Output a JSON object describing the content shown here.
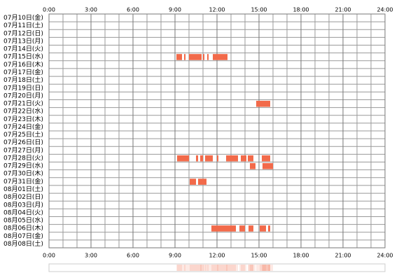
{
  "chart_data": {
    "type": "timeline",
    "xlim": [
      0,
      24
    ],
    "xticks": [
      {
        "value": 0,
        "label": "0:00"
      },
      {
        "value": 3,
        "label": "3:00"
      },
      {
        "value": 6,
        "label": "6:00"
      },
      {
        "value": 9,
        "label": "9:00"
      },
      {
        "value": 12,
        "label": "12:00"
      },
      {
        "value": 15,
        "label": "15:00"
      },
      {
        "value": 18,
        "label": "18:00"
      },
      {
        "value": 21,
        "label": "21:00"
      },
      {
        "value": 24,
        "label": "24:00"
      }
    ],
    "minor_xticks": [
      1,
      2,
      4,
      5,
      7,
      8,
      10,
      11,
      13,
      14,
      16,
      17,
      19,
      20,
      22,
      23
    ],
    "grid": true,
    "color": "#f26a4a",
    "rows": [
      {
        "label": "07月10日(金)",
        "intervals": []
      },
      {
        "label": "07月11日(土)",
        "intervals": []
      },
      {
        "label": "07月12日(日)",
        "intervals": []
      },
      {
        "label": "07月13日(月)",
        "intervals": []
      },
      {
        "label": "07月14日(火)",
        "intervals": []
      },
      {
        "label": "07月15日(水)",
        "intervals": [
          [
            9.1,
            9.5
          ],
          [
            9.65,
            9.75
          ],
          [
            10.0,
            10.9
          ],
          [
            11.0,
            11.1
          ],
          [
            11.3,
            11.4
          ],
          [
            11.7,
            12.75
          ]
        ]
      },
      {
        "label": "07月16日(木)",
        "intervals": []
      },
      {
        "label": "07月17日(金)",
        "intervals": []
      },
      {
        "label": "07月18日(土)",
        "intervals": []
      },
      {
        "label": "07月19日(日)",
        "intervals": []
      },
      {
        "label": "07月20日(月)",
        "intervals": []
      },
      {
        "label": "07月21日(火)",
        "intervals": [
          [
            14.8,
            15.8
          ]
        ]
      },
      {
        "label": "07月22日(水)",
        "intervals": []
      },
      {
        "label": "07月23日(木)",
        "intervals": []
      },
      {
        "label": "07月24日(金)",
        "intervals": []
      },
      {
        "label": "07月25日(土)",
        "intervals": []
      },
      {
        "label": "07月26日(日)",
        "intervals": []
      },
      {
        "label": "07月27日(月)",
        "intervals": []
      },
      {
        "label": "07月28日(火)",
        "intervals": [
          [
            9.15,
            10.0
          ],
          [
            10.5,
            10.65
          ],
          [
            10.8,
            11.0
          ],
          [
            11.15,
            11.7
          ],
          [
            12.0,
            12.1
          ],
          [
            12.65,
            13.5
          ],
          [
            13.7,
            14.1
          ],
          [
            14.2,
            14.6
          ],
          [
            15.2,
            15.8
          ]
        ]
      },
      {
        "label": "07月29日(水)",
        "intervals": [
          [
            14.35,
            14.75
          ],
          [
            15.25,
            16.0
          ]
        ]
      },
      {
        "label": "07月30日(木)",
        "intervals": []
      },
      {
        "label": "07月31日(金)",
        "intervals": [
          [
            10.05,
            10.5
          ],
          [
            10.65,
            11.25
          ]
        ]
      },
      {
        "label": "08月01日(土)",
        "intervals": []
      },
      {
        "label": "08月02日(日)",
        "intervals": []
      },
      {
        "label": "08月03日(月)",
        "intervals": []
      },
      {
        "label": "08月04日(火)",
        "intervals": []
      },
      {
        "label": "08月05日(水)",
        "intervals": []
      },
      {
        "label": "08月06日(木)",
        "intervals": [
          [
            11.6,
            13.35
          ],
          [
            13.6,
            14.0
          ],
          [
            14.25,
            14.6
          ],
          [
            15.05,
            15.5
          ],
          [
            15.65,
            15.8
          ]
        ]
      },
      {
        "label": "08月07日(金)",
        "intervals": []
      },
      {
        "label": "08月08日(土)",
        "intervals": []
      }
    ]
  }
}
